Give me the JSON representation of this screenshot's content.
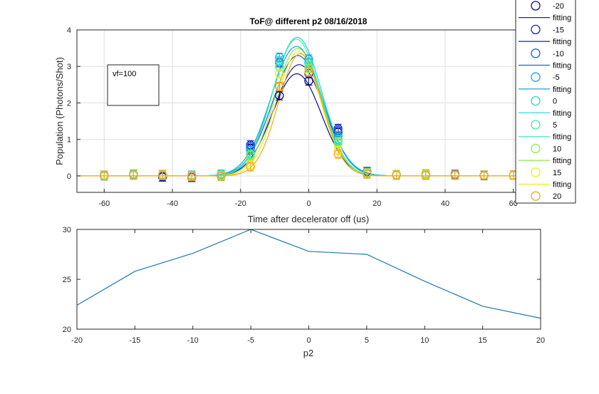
{
  "chart_data": [
    {
      "type": "scatter",
      "title": "ToF@ different p2     08/16/2018",
      "xlabel": "Time after decelerator off (us)",
      "ylabel": "Population (Photons/Shot)",
      "xlim": [
        -68,
        68
      ],
      "ylim": [
        -0.45,
        4
      ],
      "xticks": [
        "-60",
        "-40",
        "-20",
        "0",
        "20",
        "40",
        "60"
      ],
      "yticks": [
        "0",
        "1",
        "2",
        "3",
        "4"
      ],
      "grid": true,
      "annotation": "vf=100",
      "x": [
        -60,
        -51.4,
        -42.9,
        -34.3,
        -25.7,
        -17.1,
        -8.6,
        0,
        8.6,
        17.1,
        25.7,
        34.3,
        42.9,
        51.4,
        60
      ],
      "series": [
        {
          "name": "-20",
          "color": "#0a0a8c",
          "values": [
            0.02,
            0.02,
            -0.02,
            -0.03,
            0.02,
            0.75,
            2.2,
            2.6,
            1.2,
            0.1,
            0.03,
            0.03,
            0.04,
            0.02,
            0.02
          ],
          "fit": {
            "a": 2.8,
            "c": -3.5,
            "s": 7.2
          }
        },
        {
          "name": "-15",
          "color": "#1c1cc8",
          "values": [
            0.0,
            0.02,
            -0.03,
            -0.04,
            0.0,
            0.85,
            2.45,
            2.8,
            1.3,
            0.12,
            0.03,
            0.02,
            0.03,
            0.01,
            0.02
          ],
          "fit": {
            "a": 3.05,
            "c": -2.8,
            "s": 7.4
          }
        },
        {
          "name": "-10",
          "color": "#1f5fd8",
          "values": [
            0.01,
            0.03,
            0.02,
            -0.02,
            0.02,
            0.8,
            3.1,
            3.1,
            1.25,
            0.1,
            0.02,
            0.02,
            0.02,
            0.02,
            0.02
          ],
          "fit": {
            "a": 3.3,
            "c": -3.2,
            "s": 7.5
          }
        },
        {
          "name": "-5",
          "color": "#1aa0e0",
          "values": [
            0.02,
            0.05,
            0.03,
            0.02,
            0.05,
            0.7,
            3.25,
            3.2,
            1.1,
            0.1,
            0.03,
            0.02,
            0.02,
            0.02,
            0.02
          ],
          "fit": {
            "a": 3.55,
            "c": -3.6,
            "s": 7.5
          }
        },
        {
          "name": "0",
          "color": "#1ad6d6",
          "values": [
            0.0,
            0.03,
            0.04,
            0.0,
            0.03,
            0.6,
            3.15,
            3.1,
            1.0,
            0.08,
            0.03,
            0.03,
            0.02,
            0.02,
            0.02
          ],
          "fit": {
            "a": 3.8,
            "c": -3.4,
            "s": 7.2
          }
        },
        {
          "name": "5",
          "color": "#3ee8b0",
          "values": [
            0.02,
            0.04,
            0.02,
            0.01,
            0.04,
            0.6,
            3.0,
            3.0,
            0.95,
            0.08,
            0.02,
            0.06,
            0.02,
            0.02,
            0.02
          ],
          "fit": {
            "a": 3.75,
            "c": -3.6,
            "s": 7.0
          }
        },
        {
          "name": "10",
          "color": "#8de84a",
          "values": [
            0.02,
            0.02,
            0.03,
            0.0,
            0.0,
            0.55,
            2.8,
            2.95,
            0.9,
            0.08,
            0.03,
            0.05,
            0.02,
            0.02,
            0.02
          ],
          "fit": {
            "a": 3.5,
            "c": -3.2,
            "s": 6.8
          }
        },
        {
          "name": "15",
          "color": "#ecec1a",
          "values": [
            0.01,
            0.02,
            0.02,
            -0.01,
            0.0,
            0.3,
            2.8,
            2.85,
            0.7,
            0.06,
            0.02,
            0.03,
            0.02,
            0.02,
            0.02
          ],
          "fit": {
            "a": 3.4,
            "c": -3.0,
            "s": 6.5
          }
        },
        {
          "name": "20",
          "color": "#f5a818",
          "values": [
            0.01,
            0.02,
            0.03,
            -0.01,
            -0.01,
            0.25,
            2.45,
            2.85,
            0.6,
            0.05,
            0.02,
            0.02,
            0.02,
            0.02,
            0.02
          ],
          "fit": {
            "a": 3.35,
            "c": -2.5,
            "s": 6.3
          }
        }
      ],
      "legend": {
        "placement": "top-right",
        "entries": [
          "-20",
          "fitting",
          "-15",
          "fitting",
          "-10",
          "fitting",
          "-5",
          "fitting",
          "0",
          "fitting",
          "5",
          "fitting",
          "10",
          "fitting",
          "15",
          "fitting",
          "20"
        ]
      }
    },
    {
      "type": "line",
      "title": "",
      "xlabel": "p2",
      "ylabel": "",
      "xlim": [
        -20,
        20
      ],
      "ylim": [
        20,
        30
      ],
      "xticks": [
        "-20",
        "-15",
        "-10",
        "-5",
        "0",
        "5",
        "10",
        "15",
        "20"
      ],
      "yticks": [
        "20",
        "25",
        "30"
      ],
      "grid": false,
      "color": "#1f77b4",
      "x": [
        -20,
        -15,
        -10,
        -5,
        0,
        5,
        10,
        15,
        20
      ],
      "series": [
        {
          "values": [
            22.4,
            25.8,
            27.6,
            30.0,
            27.8,
            27.5,
            24.8,
            22.3,
            21.1
          ]
        }
      ]
    }
  ]
}
